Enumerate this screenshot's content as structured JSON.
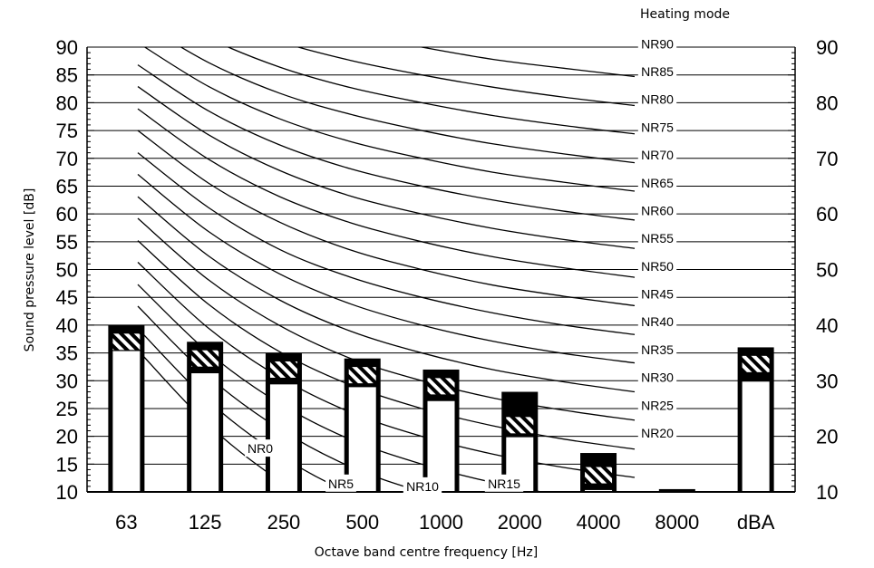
{
  "chart_data": {
    "type": "bar",
    "title": "Heating mode",
    "xlabel": "Octave band centre frequency [Hz]",
    "ylabel": "Sound pressure level [dB]",
    "ylim": [
      10,
      90
    ],
    "y_ticks": [
      10,
      15,
      20,
      25,
      30,
      35,
      40,
      45,
      50,
      55,
      60,
      65,
      70,
      75,
      80,
      85,
      90
    ],
    "right_y_ticks": [
      10,
      20,
      30,
      40,
      50,
      60,
      70,
      80,
      90
    ],
    "categories": [
      "63",
      "125",
      "250",
      "500",
      "1000",
      "2000",
      "4000",
      "8000",
      "dBA"
    ],
    "series": [
      {
        "values": [
          40,
          37,
          35,
          34,
          32,
          28,
          17,
          10.5,
          36
        ]
      },
      {
        "values": [
          37,
          34,
          32,
          31,
          29,
          22,
          13,
          10,
          33
        ]
      },
      {
        "values": [
          35.5,
          31.5,
          29.5,
          29,
          26.5,
          20,
          10.5,
          10,
          30
        ]
      }
    ],
    "nr_curves": [
      {
        "name": "NR0",
        "values": [
          35.5,
          22.0,
          12.0,
          4.8,
          0.0
        ]
      },
      {
        "name": "NR5",
        "values": [
          39.4,
          26.3,
          16.6,
          9.7,
          5.0,
          1.6
        ]
      },
      {
        "name": "NR10",
        "values": [
          43.4,
          30.7,
          21.3,
          14.5,
          10.0,
          6.6,
          4.2,
          2.3
        ]
      },
      {
        "name": "NR15",
        "values": [
          47.3,
          35.0,
          25.9,
          19.4,
          15.0,
          11.7,
          9.3,
          7.4
        ]
      },
      {
        "name": "NR20",
        "values": [
          51.3,
          39.4,
          30.6,
          24.3,
          20.0,
          16.8,
          14.4,
          12.6
        ]
      },
      {
        "name": "NR25",
        "values": [
          55.2,
          43.7,
          35.2,
          29.2,
          25.0,
          21.9,
          19.5,
          17.7
        ]
      },
      {
        "name": "NR30",
        "values": [
          59.2,
          48.1,
          39.9,
          34.0,
          30.0,
          26.9,
          24.7,
          22.9
        ]
      },
      {
        "name": "NR35",
        "values": [
          63.1,
          52.4,
          44.5,
          38.9,
          35.0,
          32.0,
          29.8,
          28.0
        ]
      },
      {
        "name": "NR40",
        "values": [
          67.1,
          56.8,
          49.2,
          43.8,
          40.0,
          37.1,
          34.9,
          33.2
        ]
      },
      {
        "name": "NR45",
        "values": [
          71.0,
          61.1,
          53.6,
          48.6,
          45.0,
          42.2,
          40.0,
          38.3
        ]
      },
      {
        "name": "NR50",
        "values": [
          75.0,
          65.5,
          58.5,
          53.5,
          50.0,
          47.2,
          45.2,
          43.5
        ]
      },
      {
        "name": "NR55",
        "values": [
          78.9,
          69.8,
          63.1,
          58.4,
          55.0,
          52.3,
          50.3,
          48.6
        ]
      },
      {
        "name": "NR60",
        "values": [
          82.9,
          74.2,
          67.8,
          63.2,
          60.0,
          57.4,
          55.4,
          53.8
        ]
      },
      {
        "name": "NR65",
        "values": [
          86.8,
          78.5,
          72.4,
          68.1,
          65.0,
          62.5,
          60.5,
          58.9
        ]
      },
      {
        "name": "NR70",
        "values": [
          90.8,
          82.9,
          77.1,
          73.0,
          70.0,
          67.5,
          65.7,
          64.1
        ]
      },
      {
        "name": "NR75",
        "values": [
          94.7,
          87.2,
          81.7,
          77.9,
          75.0,
          72.6,
          70.8,
          69.2
        ]
      },
      {
        "name": "NR80",
        "values": [
          98.7,
          91.6,
          86.4,
          82.7,
          80.0,
          77.7,
          75.9,
          74.4
        ]
      },
      {
        "name": "NR85",
        "values": [
          102.6,
          95.9,
          91.0,
          87.6,
          85.0,
          82.8,
          81.0,
          79.5
        ]
      },
      {
        "name": "NR90",
        "values": [
          106.6,
          100.3,
          95.7,
          92.5,
          90.0,
          87.8,
          86.2,
          84.7
        ]
      }
    ],
    "grid": true,
    "legend": "none"
  }
}
